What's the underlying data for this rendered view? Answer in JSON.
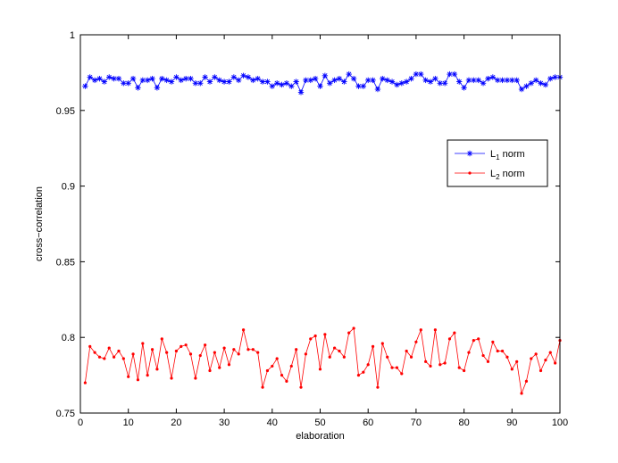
{
  "chart_data": {
    "type": "line",
    "xlabel": "elaboration",
    "ylabel": "cross−correlation",
    "xlim": [
      0,
      100
    ],
    "ylim": [
      0.75,
      1
    ],
    "xticks": [
      0,
      10,
      20,
      30,
      40,
      50,
      60,
      70,
      80,
      90,
      100
    ],
    "yticks": [
      0.75,
      0.8,
      0.85,
      0.9,
      0.95,
      1
    ],
    "ytick_labels": [
      "0.75",
      "0.8",
      "0.85",
      "0.9",
      "0.95",
      "1"
    ],
    "grid": false,
    "legend_position": "right",
    "series": [
      {
        "name": "L1 norm",
        "legend_main": "L",
        "legend_sub": "1",
        "legend_rest": " norm",
        "color": "#0000ff",
        "marker": "asterisk",
        "x": [
          1,
          2,
          3,
          4,
          5,
          6,
          7,
          8,
          9,
          10,
          11,
          12,
          13,
          14,
          15,
          16,
          17,
          18,
          19,
          20,
          21,
          22,
          23,
          24,
          25,
          26,
          27,
          28,
          29,
          30,
          31,
          32,
          33,
          34,
          35,
          36,
          37,
          38,
          39,
          40,
          41,
          42,
          43,
          44,
          45,
          46,
          47,
          48,
          49,
          50,
          51,
          52,
          53,
          54,
          55,
          56,
          57,
          58,
          59,
          60,
          61,
          62,
          63,
          64,
          65,
          66,
          67,
          68,
          69,
          70,
          71,
          72,
          73,
          74,
          75,
          76,
          77,
          78,
          79,
          80,
          81,
          82,
          83,
          84,
          85,
          86,
          87,
          88,
          89,
          90,
          91,
          92,
          93,
          94,
          95,
          96,
          97,
          98,
          99,
          100
        ],
        "values": [
          0.966,
          0.972,
          0.97,
          0.971,
          0.969,
          0.972,
          0.971,
          0.971,
          0.968,
          0.968,
          0.971,
          0.965,
          0.97,
          0.97,
          0.971,
          0.965,
          0.971,
          0.97,
          0.969,
          0.972,
          0.97,
          0.971,
          0.971,
          0.968,
          0.968,
          0.972,
          0.969,
          0.972,
          0.97,
          0.969,
          0.969,
          0.972,
          0.97,
          0.973,
          0.972,
          0.97,
          0.971,
          0.969,
          0.969,
          0.966,
          0.968,
          0.967,
          0.968,
          0.966,
          0.969,
          0.962,
          0.97,
          0.97,
          0.971,
          0.966,
          0.973,
          0.968,
          0.97,
          0.971,
          0.969,
          0.974,
          0.971,
          0.966,
          0.966,
          0.97,
          0.97,
          0.964,
          0.971,
          0.97,
          0.969,
          0.967,
          0.968,
          0.969,
          0.971,
          0.974,
          0.974,
          0.97,
          0.969,
          0.971,
          0.968,
          0.968,
          0.974,
          0.974,
          0.969,
          0.965,
          0.97,
          0.97,
          0.97,
          0.968,
          0.971,
          0.972,
          0.97,
          0.97,
          0.97,
          0.97,
          0.97,
          0.964,
          0.966,
          0.968,
          0.97,
          0.968,
          0.967,
          0.971,
          0.972,
          0.972
        ]
      },
      {
        "name": "L2 norm",
        "legend_main": "L",
        "legend_sub": "2",
        "legend_rest": " norm",
        "color": "#ff0000",
        "marker": "dot",
        "x": [
          1,
          2,
          3,
          4,
          5,
          6,
          7,
          8,
          9,
          10,
          11,
          12,
          13,
          14,
          15,
          16,
          17,
          18,
          19,
          20,
          21,
          22,
          23,
          24,
          25,
          26,
          27,
          28,
          29,
          30,
          31,
          32,
          33,
          34,
          35,
          36,
          37,
          38,
          39,
          40,
          41,
          42,
          43,
          44,
          45,
          46,
          47,
          48,
          49,
          50,
          51,
          52,
          53,
          54,
          55,
          56,
          57,
          58,
          59,
          60,
          61,
          62,
          63,
          64,
          65,
          66,
          67,
          68,
          69,
          70,
          71,
          72,
          73,
          74,
          75,
          76,
          77,
          78,
          79,
          80,
          81,
          82,
          83,
          84,
          85,
          86,
          87,
          88,
          89,
          90,
          91,
          92,
          93,
          94,
          95,
          96,
          97,
          98,
          99,
          100
        ],
        "values": [
          0.77,
          0.794,
          0.79,
          0.787,
          0.786,
          0.793,
          0.787,
          0.791,
          0.786,
          0.774,
          0.789,
          0.772,
          0.796,
          0.775,
          0.792,
          0.779,
          0.799,
          0.79,
          0.773,
          0.791,
          0.794,
          0.795,
          0.789,
          0.773,
          0.788,
          0.795,
          0.778,
          0.79,
          0.78,
          0.793,
          0.782,
          0.792,
          0.789,
          0.805,
          0.792,
          0.792,
          0.79,
          0.767,
          0.778,
          0.781,
          0.786,
          0.775,
          0.771,
          0.781,
          0.792,
          0.767,
          0.789,
          0.799,
          0.801,
          0.779,
          0.802,
          0.787,
          0.793,
          0.791,
          0.787,
          0.803,
          0.806,
          0.775,
          0.777,
          0.782,
          0.794,
          0.767,
          0.796,
          0.787,
          0.78,
          0.78,
          0.776,
          0.791,
          0.787,
          0.797,
          0.805,
          0.784,
          0.781,
          0.805,
          0.782,
          0.783,
          0.799,
          0.803,
          0.78,
          0.778,
          0.79,
          0.798,
          0.799,
          0.788,
          0.784,
          0.797,
          0.791,
          0.791,
          0.787,
          0.779,
          0.784,
          0.763,
          0.771,
          0.786,
          0.789,
          0.778,
          0.785,
          0.79,
          0.783,
          0.798
        ]
      }
    ]
  }
}
